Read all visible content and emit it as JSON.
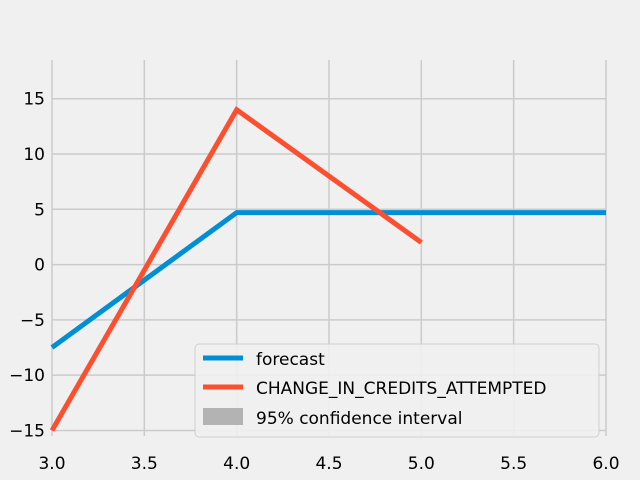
{
  "chart_data": {
    "type": "line",
    "title": "",
    "xlabel": "",
    "ylabel": "",
    "xlim": [
      3.0,
      6.0
    ],
    "ylim": [
      -15.5,
      18.5
    ],
    "xticks": [
      3.0,
      3.5,
      4.0,
      4.5,
      5.0,
      5.5,
      6.0
    ],
    "xtick_labels": [
      "3.0",
      "3.5",
      "4.0",
      "4.5",
      "5.0",
      "5.5",
      "6.0"
    ],
    "yticks": [
      -15,
      -10,
      -5,
      0,
      5,
      10,
      15
    ],
    "ytick_labels": [
      "−15",
      "−10",
      "−5",
      "0",
      "5",
      "10",
      "15"
    ],
    "grid": true,
    "legend_position": "lower-right",
    "series": [
      {
        "name": "forecast",
        "color": "#008fd5",
        "x": [
          3,
          4,
          5,
          6
        ],
        "y": [
          -7.5,
          4.7,
          4.7,
          4.7
        ]
      },
      {
        "name": "CHANGE_IN_CREDITS_ATTEMPTED",
        "color": "#fc4f30",
        "x": [
          3,
          4,
          5
        ],
        "y": [
          -15,
          14,
          2
        ]
      }
    ],
    "confidence_interval": {
      "name": "95% confidence interval",
      "color": "#b3b3b3"
    }
  }
}
